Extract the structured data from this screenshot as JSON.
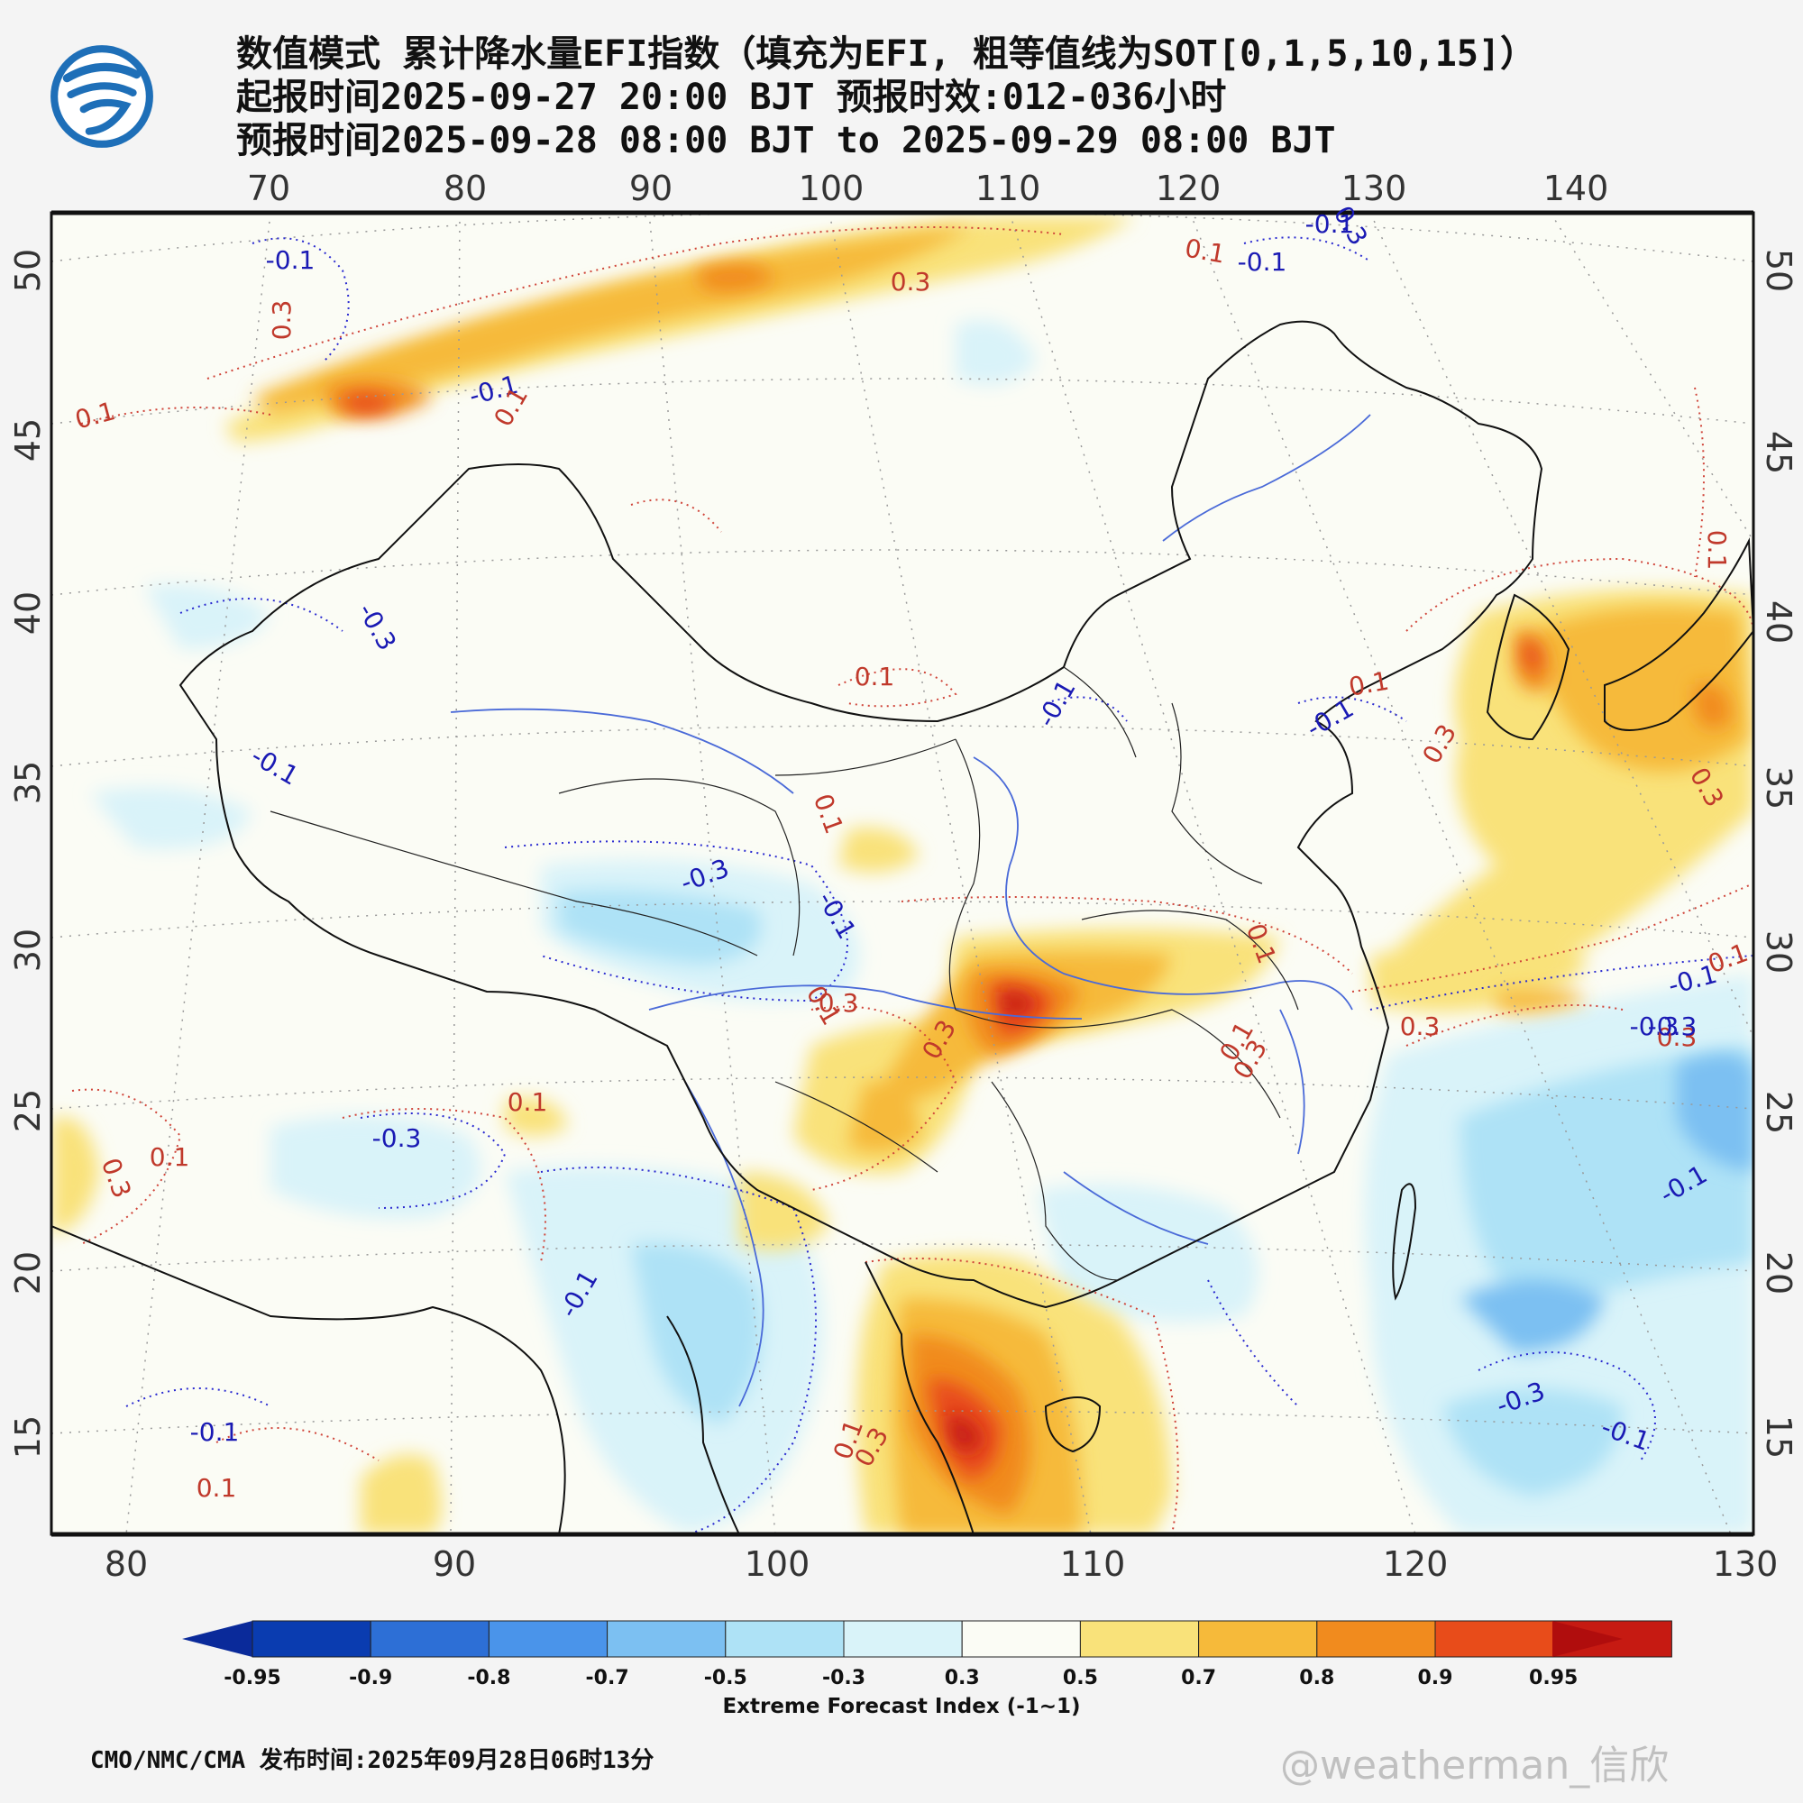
{
  "header": {
    "title_line1": "数值模式 累计降水量EFI指数（填充为EFI, 粗等值线为SOT[0,1,5,10,15]）",
    "title_line2": "起报时间2025-09-27 20:00 BJT 预报时效:012-036小时",
    "title_line3": "预报时间2025-09-28 08:00 BJT to 2025-09-29 08:00 BJT"
  },
  "map": {
    "top_lon_ticks": [
      "70",
      "80",
      "90",
      "100",
      "110",
      "120",
      "130",
      "140"
    ],
    "bottom_lon_ticks": [
      "80",
      "90",
      "100",
      "110",
      "120",
      "130"
    ],
    "left_lat_ticks": [
      "50",
      "45",
      "40",
      "35",
      "30",
      "25",
      "20",
      "15"
    ],
    "right_lat_ticks": [
      "50",
      "45",
      "40",
      "35",
      "30",
      "25",
      "20",
      "15"
    ],
    "contour_labels": [
      {
        "text": "-0.1",
        "color": "#1a1ab4"
      },
      {
        "text": "0.3",
        "color": "#c0392b"
      },
      {
        "text": "0.1",
        "color": "#c0392b"
      },
      {
        "text": "-0.1",
        "color": "#1a1ab4"
      },
      {
        "text": "0.1",
        "color": "#c0392b"
      },
      {
        "text": "0.1",
        "color": "#c0392b"
      },
      {
        "text": "-0.1",
        "color": "#1a1ab4"
      },
      {
        "text": "0.3",
        "color": "#c0392b"
      },
      {
        "text": "-0.1",
        "color": "#1a1ab4"
      },
      {
        "text": "0.3",
        "color": "#1a1ab4"
      },
      {
        "text": "-0.3",
        "color": "#1a1ab4"
      },
      {
        "text": "-0.1",
        "color": "#1a1ab4"
      },
      {
        "text": "0.1",
        "color": "#c0392b"
      },
      {
        "text": "-0.1",
        "color": "#1a1ab4"
      },
      {
        "text": "0.1",
        "color": "#c0392b"
      },
      {
        "text": "-0.1",
        "color": "#1a1ab4"
      },
      {
        "text": "0.3",
        "color": "#c0392b"
      },
      {
        "text": "-0.3",
        "color": "#1a1ab4"
      },
      {
        "text": "0.1",
        "color": "#c0392b"
      },
      {
        "text": "0.3",
        "color": "#c0392b"
      },
      {
        "text": "0.1",
        "color": "#c0392b"
      },
      {
        "text": "-0.1",
        "color": "#1a1ab4"
      },
      {
        "text": "0.3",
        "color": "#c0392b"
      },
      {
        "text": "0.1",
        "color": "#c0392b"
      },
      {
        "text": "0.3",
        "color": "#c0392b"
      },
      {
        "text": "-0.3",
        "color": "#1a1ab4"
      },
      {
        "text": "0.3",
        "color": "#c0392b"
      },
      {
        "text": "0.1",
        "color": "#c0392b"
      },
      {
        "text": "0.3",
        "color": "#c0392b"
      },
      {
        "text": "0.1",
        "color": "#c0392b"
      },
      {
        "text": "-0.1",
        "color": "#1a1ab4"
      },
      {
        "text": "0.3",
        "color": "#c0392b"
      },
      {
        "text": "0.1",
        "color": "#c0392b"
      },
      {
        "text": "-0.1",
        "color": "#1a1ab4"
      },
      {
        "text": "-0.1",
        "color": "#1a1ab4"
      },
      {
        "text": "0.1",
        "color": "#c0392b"
      },
      {
        "text": "-0.3",
        "color": "#1a1ab4"
      },
      {
        "text": "-0.3",
        "color": "#1a1ab4"
      },
      {
        "text": "-0.1",
        "color": "#1a1ab4"
      },
      {
        "text": "0.1",
        "color": "#c0392b"
      },
      {
        "text": "0.3",
        "color": "#c0392b"
      },
      {
        "text": "-0.1",
        "color": "#1a1ab4"
      },
      {
        "text": "0.1",
        "color": "#c0392b"
      },
      {
        "text": "0.1",
        "color": "#c0392b"
      },
      {
        "text": "0.3",
        "color": "#c0392b"
      },
      {
        "text": "-0.3",
        "color": "#1a1ab4"
      }
    ]
  },
  "colorbar": {
    "colors": [
      "#0a3cb0",
      "#2d6fd6",
      "#4a94ea",
      "#7cc0f2",
      "#aee2f6",
      "#d9f3f9",
      "#fbfcf5",
      "#f9e27a",
      "#f6ba3a",
      "#f18b1e",
      "#e84c1a",
      "#c61a12"
    ],
    "low_arrow_color": "#0a2a9a",
    "high_arrow_color": "#b00d0d",
    "labels": [
      "-0.95",
      "-0.9",
      "-0.8",
      "-0.7",
      "-0.5",
      "-0.3",
      "0.3",
      "0.5",
      "0.7",
      "0.8",
      "0.9",
      "0.95"
    ],
    "title": "Extreme Forecast Index (-1~1)"
  },
  "footer": {
    "source": "CMO/NMC/CMA 发布时间:2025年09月28日06时13分",
    "watermark": "@weatherman_信欣"
  }
}
